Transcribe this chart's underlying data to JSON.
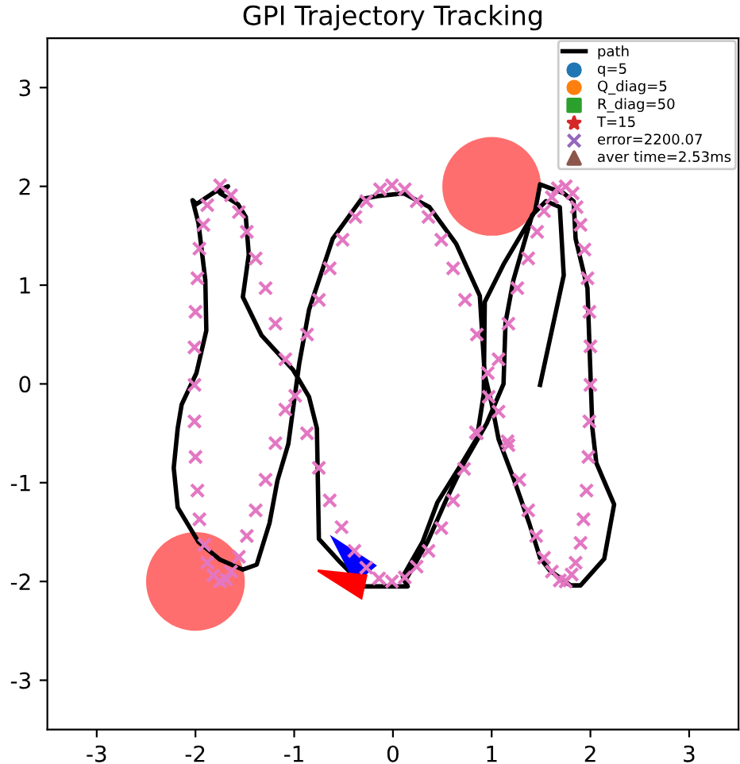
{
  "chart_data": {
    "type": "line",
    "title": "GPI Trajectory Tracking",
    "xlim": [
      -3.5,
      3.5
    ],
    "ylim": [
      -3.5,
      3.5
    ],
    "xticks": [
      -3,
      -2,
      -1,
      0,
      1,
      2,
      3
    ],
    "yticks": [
      -3,
      -2,
      -1,
      0,
      1,
      2,
      3
    ],
    "grid": false,
    "legend": "top right",
    "series": [
      {
        "type": "bubble",
        "color": "#ff6e6e",
        "x": [
          -2,
          1
        ],
        "values": [
          -2,
          2
        ],
        "sizes": [
          1,
          1
        ]
      },
      {
        "type": "scatter",
        "marker": "cross",
        "color": "#e377c2",
        "x": [
          -1.75,
          -1.64,
          -1.88,
          -1.56,
          -1.92,
          -1.48,
          -1.96,
          -1.39,
          -1.98,
          -1.29,
          -2.0,
          -1.19,
          -2.01,
          -1.09,
          -2.01,
          -0.99,
          -2.01,
          -1.09,
          -0.87,
          -1.19,
          -0.64,
          -0.51,
          -0.75,
          -0.87,
          -0.38,
          -0.27,
          -0.13,
          -0.01,
          0.12,
          0.24,
          0.36,
          0.49,
          0.61,
          0.73,
          0.85,
          1.07,
          0.96,
          0.97,
          1.07,
          0.85,
          1.16,
          1.17,
          1.26,
          1.37,
          1.46,
          1.53,
          1.61,
          1.67,
          1.75,
          1.82,
          1.86,
          1.9,
          1.94,
          1.97,
          1.99,
          2.0,
          2.0,
          1.99,
          -2.0,
          -1.98,
          -1.96,
          -1.91,
          -1.88,
          -1.82,
          -1.75,
          -1.69,
          -1.64,
          -1.56,
          -1.48,
          -1.39,
          -1.29,
          -0.75,
          -0.64,
          -0.52,
          -0.39,
          -0.27,
          -0.14,
          -0.01,
          0.12,
          0.24,
          0.36,
          0.49,
          0.61,
          0.72,
          0.84,
          1.17,
          1.28,
          1.37,
          1.45,
          1.53,
          1.61,
          1.69,
          1.75,
          1.81,
          1.85,
          1.9,
          1.93,
          1.96,
          1.98
        ],
        "values": [
          2.01,
          1.91,
          1.81,
          1.74,
          1.61,
          1.54,
          1.37,
          1.27,
          1.07,
          0.97,
          0.73,
          0.61,
          0.37,
          0.25,
          -0.01,
          -0.12,
          -0.38,
          -0.26,
          -0.5,
          -0.6,
          1.17,
          1.46,
          0.85,
          0.5,
          1.69,
          1.85,
          1.97,
          2.01,
          1.97,
          1.85,
          1.69,
          1.46,
          1.17,
          0.85,
          0.5,
          0.25,
          0.11,
          -0.13,
          -0.28,
          -0.5,
          -0.58,
          0.61,
          0.97,
          1.27,
          1.54,
          1.75,
          1.89,
          1.98,
          2.0,
          1.93,
          1.79,
          1.61,
          1.36,
          1.07,
          0.73,
          0.38,
          -0.01,
          -0.38,
          -0.74,
          -1.08,
          -1.37,
          -1.63,
          -1.81,
          -1.94,
          -2.0,
          -1.98,
          -1.9,
          -1.75,
          -1.54,
          -1.28,
          -0.97,
          -0.85,
          -1.18,
          -1.45,
          -1.69,
          -1.86,
          -1.97,
          -2.0,
          -1.96,
          -1.85,
          -1.69,
          -1.46,
          -1.18,
          -0.86,
          -0.49,
          -0.62,
          -0.97,
          -1.28,
          -1.54,
          -1.76,
          -1.9,
          -1.99,
          -2.0,
          -1.93,
          -1.81,
          -1.61,
          -1.37,
          -1.08,
          -0.74
        ]
      },
      {
        "name": "path",
        "color": "#000000",
        "line_style": "solid",
        "marker": "none",
        "x": [
          -0.3,
          0.15,
          0.1,
          0.3,
          0.45,
          0.7,
          0.85,
          0.92,
          0.93,
          1.12,
          1.44,
          1.49,
          1.73,
          1.83,
          1.85,
          1.97,
          2.02,
          2.06,
          2.24,
          2.14,
          1.9,
          1.8,
          1.59,
          1.49,
          1.38,
          1.23,
          1.07,
          1.0,
          0.93,
          0.88,
          0.64,
          0.37,
          0.11,
          -0.16,
          -0.32,
          -0.61,
          -0.85,
          -0.95,
          -1.06,
          -1.17,
          -1.25,
          -1.38,
          -1.52,
          -1.75,
          -1.97,
          -2.18,
          -2.22,
          -2.18,
          -2.14,
          -1.99,
          -1.89,
          -1.9,
          -1.97,
          -2.03,
          -1.99,
          -1.81,
          -1.67,
          -1.75,
          -1.57,
          -1.49,
          -1.46,
          -1.52,
          -1.33,
          -1.01,
          -0.85,
          -0.77,
          -0.75,
          -0.53,
          -0.29,
          0.15,
          0.12,
          0.35,
          0.55,
          0.72,
          0.95,
          1.12,
          1.14,
          1.22,
          1.41,
          1.55,
          1.69,
          1.73,
          1.49
        ],
        "values": [
          -2.05,
          -2.05,
          -1.95,
          -1.6,
          -1.2,
          -0.8,
          -0.55,
          -0.1,
          0.83,
          1.21,
          1.75,
          2.02,
          1.93,
          1.85,
          1.47,
          0.97,
          -0.45,
          -0.8,
          -1.22,
          -1.77,
          -2.04,
          -2.04,
          -1.89,
          -1.76,
          -1.41,
          -0.98,
          -0.56,
          -0.2,
          0.09,
          0.89,
          1.42,
          1.79,
          1.93,
          1.9,
          1.87,
          1.47,
          0.75,
          0.2,
          -0.61,
          -0.98,
          -1.41,
          -1.83,
          -1.88,
          -1.78,
          -1.6,
          -1.25,
          -0.85,
          -0.45,
          -0.21,
          0.11,
          0.54,
          1.05,
          1.63,
          1.86,
          1.82,
          1.94,
          2.0,
          1.93,
          1.82,
          1.69,
          1.31,
          0.88,
          0.49,
          0.14,
          -0.13,
          -0.45,
          -1.57,
          -1.81,
          -2.05,
          -2.05,
          -2.0,
          -1.6,
          -1.15,
          -0.8,
          -0.4,
          0.0,
          0.62,
          1.05,
          1.71,
          1.85,
          1.79,
          1.1,
          -0.01
        ]
      },
      {
        "type": "scatter",
        "name": "q=5",
        "marker": "circle",
        "color": "#1f77b4"
      },
      {
        "type": "scatter",
        "name": "Q_diag=5",
        "marker": "circle",
        "color": "#ff7f0e"
      },
      {
        "type": "scatter",
        "name": "R_diag=50",
        "marker": "square",
        "color": "#2ca02c"
      },
      {
        "type": "scatter",
        "name": "T=15",
        "marker": "star",
        "color": "#d62728"
      },
      {
        "type": "scatter",
        "name": "error=2200.07",
        "marker": "cross",
        "color": "#9467bd"
      },
      {
        "type": "scatter",
        "name": "aver time=2.53ms",
        "marker": "triangle",
        "color": "#8c564b"
      }
    ]
  }
}
